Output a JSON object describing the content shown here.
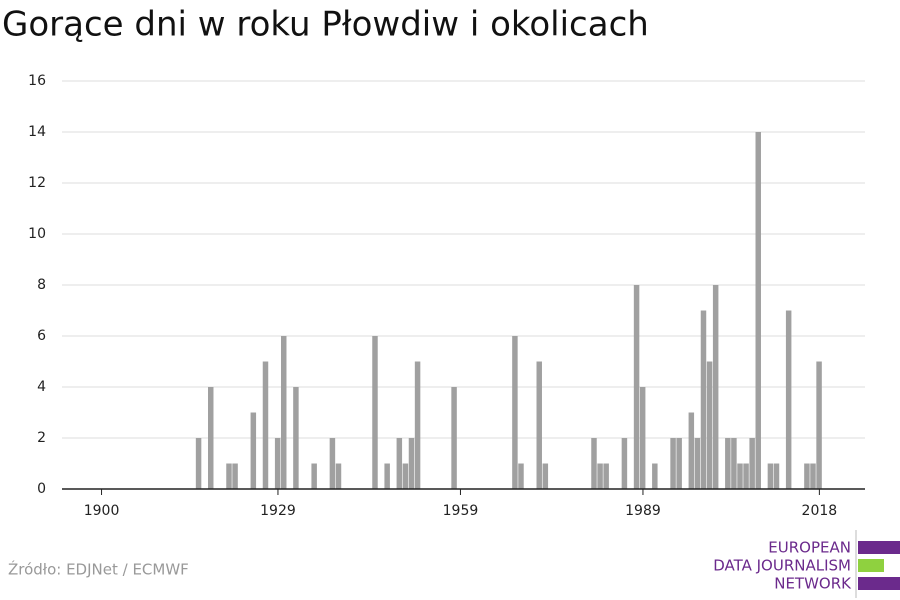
{
  "chart_data": {
    "type": "bar",
    "title": "Gorące dni w roku Płowdiw i okolicach",
    "x": [
      1916,
      1918,
      1921,
      1922,
      1925,
      1927,
      1929,
      1930,
      1932,
      1935,
      1938,
      1939,
      1945,
      1947,
      1949,
      1950,
      1951,
      1952,
      1958,
      1968,
      1969,
      1972,
      1973,
      1981,
      1982,
      1983,
      1986,
      1988,
      1989,
      1991,
      1994,
      1995,
      1997,
      1998,
      1999,
      2000,
      2001,
      2003,
      2004,
      2005,
      2006,
      2007,
      2008,
      2010,
      2011,
      2013,
      2016,
      2017,
      2018
    ],
    "values": [
      2,
      4,
      1,
      1,
      3,
      5,
      2,
      6,
      4,
      1,
      2,
      1,
      6,
      1,
      2,
      1,
      2,
      5,
      4,
      6,
      1,
      5,
      1,
      2,
      1,
      1,
      2,
      8,
      4,
      1,
      2,
      2,
      3,
      2,
      7,
      5,
      8,
      2,
      2,
      1,
      1,
      2,
      14,
      1,
      1,
      7,
      1,
      1,
      5
    ],
    "color": "#a0a0a0",
    "xlim": [
      1893.5,
      2025.5
    ],
    "xticks": [
      1900,
      1929,
      1959,
      1989,
      2018
    ],
    "ylim": [
      0,
      16
    ],
    "yticks": [
      0,
      2,
      4,
      6,
      8,
      10,
      12,
      14,
      16
    ],
    "grid": true,
    "source": "Źródło: EDJNet / ECMWF"
  },
  "logo": {
    "lines": [
      "EUROPEAN",
      "DATA JOURNALISM",
      "NETWORK"
    ]
  }
}
